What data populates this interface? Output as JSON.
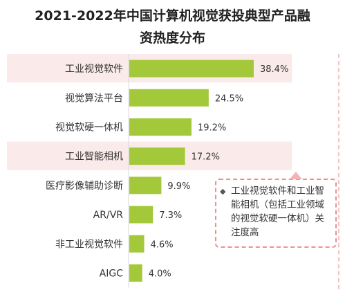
{
  "title_lines": [
    "2021-2022年中国计算机视觉获投典型产品融",
    "资热度分布"
  ],
  "colors": {
    "bar": "#a3c93a",
    "highlight_band": "#fbeaea",
    "callout_border": "#ef8f8f"
  },
  "chart_data": {
    "type": "bar",
    "orientation": "horizontal",
    "title": "2021-2022年中国计算机视觉获投典型产品融资热度分布",
    "categories": [
      "工业视觉软件",
      "视觉算法平台",
      "视觉软硬一体机",
      "工业智能相机",
      "医疗影像辅助诊断",
      "AR/VR",
      "非工业视觉软件",
      "AIGC"
    ],
    "values": [
      38.4,
      24.5,
      19.2,
      17.2,
      9.9,
      7.3,
      4.6,
      4.0
    ],
    "value_labels": [
      "38.4%",
      "24.5%",
      "19.2%",
      "17.2%",
      "9.9%",
      "7.3%",
      "4.6%",
      "4.0%"
    ],
    "highlighted": [
      "工业视觉软件",
      "工业智能相机"
    ],
    "unit": "%"
  },
  "callout": {
    "marker": "◆",
    "text": "工业视觉软件和工业智能相机（包括工业领域的视觉软硬一体机）关注度高"
  }
}
